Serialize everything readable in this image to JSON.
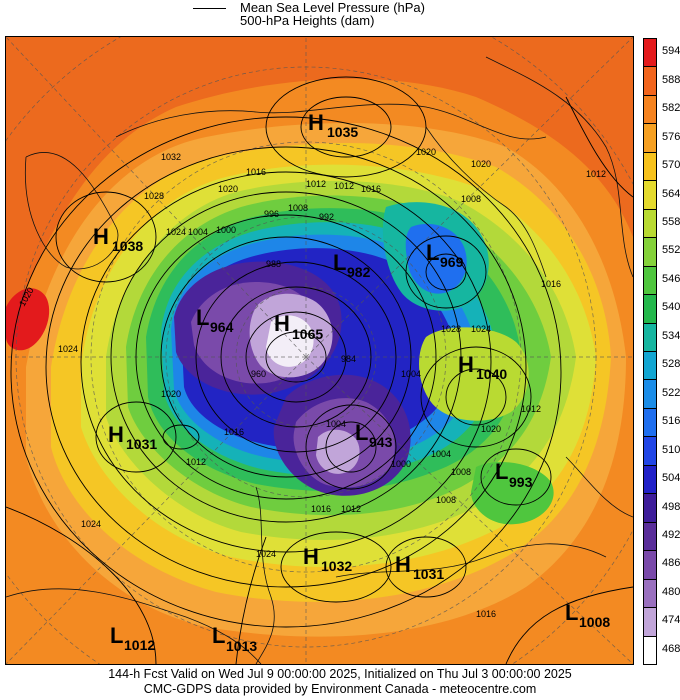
{
  "legend": {
    "line_label": "Mean Sea Level Pressure (hPa)",
    "fill_label": "500-hPa Heights (dam)"
  },
  "colorbar": {
    "levels": [
      "594",
      "588",
      "582",
      "576",
      "570",
      "564",
      "558",
      "552",
      "546",
      "540",
      "534",
      "528",
      "522",
      "516",
      "510",
      "504",
      "498",
      "492",
      "486",
      "480",
      "474",
      "468"
    ],
    "colors": [
      "#e31a1c",
      "#f2651d",
      "#f5831f",
      "#f6a022",
      "#f7c21c",
      "#e4da2e",
      "#b9da32",
      "#85d23a",
      "#4fc63e",
      "#24b84c",
      "#16b6a0",
      "#12a6d2",
      "#1b8de8",
      "#1f6fef",
      "#2246e6",
      "#2222c8",
      "#3e1d9a",
      "#5a2e9a",
      "#7a4aaa",
      "#9a70bf",
      "#c1a5d9",
      "#ffffff"
    ]
  },
  "map": {
    "pressure_centers": [
      {
        "letter": "H",
        "value": "1035"
      },
      {
        "letter": "H",
        "value": "1038"
      },
      {
        "letter": "L",
        "value": "969"
      },
      {
        "letter": "L",
        "value": "982"
      },
      {
        "letter": "L",
        "value": "964"
      },
      {
        "letter": "H",
        "value": "1065"
      },
      {
        "letter": "H",
        "value": "1040"
      },
      {
        "letter": "H",
        "value": "1031"
      },
      {
        "letter": "L",
        "value": "943"
      },
      {
        "letter": "L",
        "value": "993"
      },
      {
        "letter": "H",
        "value": "1032"
      },
      {
        "letter": "H",
        "value": "1031"
      },
      {
        "letter": "L",
        "value": "1008"
      },
      {
        "letter": "L",
        "value": "1012"
      },
      {
        "letter": "L",
        "value": "1013"
      }
    ],
    "isobar_labels": [
      "1020",
      "1032",
      "1028",
      "1024",
      "1020",
      "1016",
      "1012",
      "1008",
      "1004",
      "1000",
      "996",
      "992",
      "988",
      "984",
      "960",
      "1004",
      "1016",
      "1012",
      "1008",
      "1016",
      "1020",
      "1020",
      "1024",
      "1028",
      "1020",
      "1012",
      "1008",
      "1004",
      "1016",
      "1012",
      "1008",
      "1004",
      "1000",
      "1024",
      "1024",
      "1020",
      "1016",
      "1012",
      "1016",
      "1012",
      "1024"
    ]
  },
  "footer": {
    "line1": "144-h Fcst Valid on Wed Jul  9 00:00:00 2025, Initialized on Thu Jul  3 00:00:00 2025",
    "line2": "CMC-GDPS data provided by Environment Canada - meteocentre.com"
  }
}
